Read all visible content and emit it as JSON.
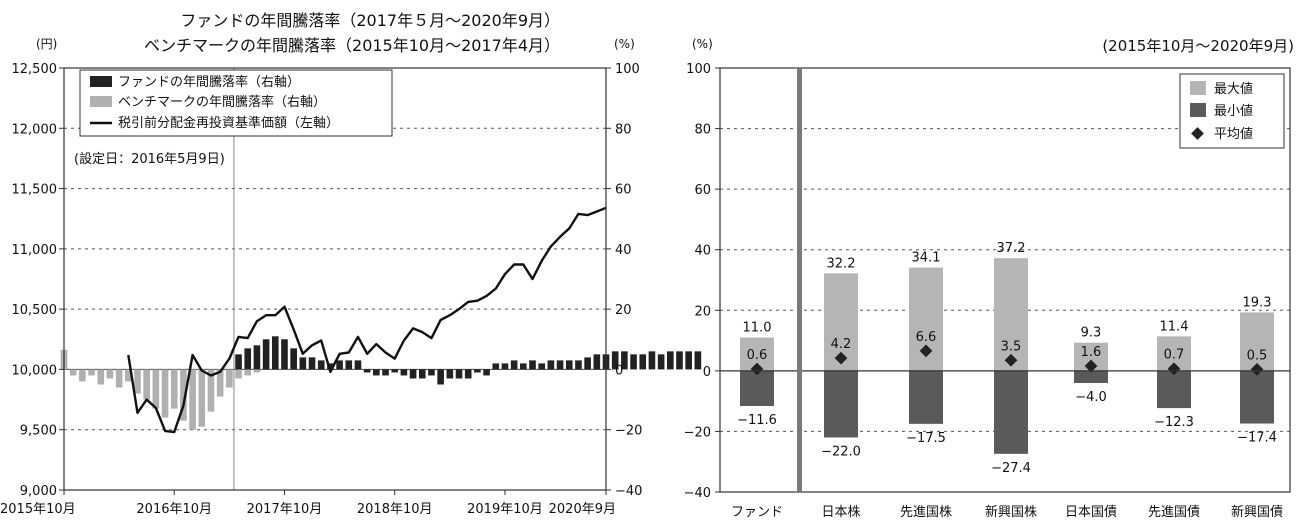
{
  "chart_data": [
    {
      "type": "line",
      "title": "ファンドの年間騰落率（2017年５月〜2020年9月）",
      "subtitle": "ベンチマークの年間騰落率（2015年10月〜2017年4月）",
      "ylabel_left": "(円)",
      "ylabel_right": "(%)",
      "yleft_range": [
        9000,
        12500
      ],
      "yright_range": [
        -40,
        100
      ],
      "yleft_ticks": [
        "9,000",
        "9,500",
        "10,000",
        "10,500",
        "11,000",
        "11,500",
        "12,000",
        "12,500"
      ],
      "yright_ticks": [
        "−40",
        "−20",
        "0",
        "20",
        "40",
        "60",
        "80",
        "100"
      ],
      "xticks": [
        "2015年10月",
        "2016年10月",
        "2017年10月",
        "2018年10月",
        "2019年10月",
        "2020年9月"
      ],
      "x_start": "2015-10",
      "legend": [
        {
          "name": "ファンドの年間騰落率（右軸）",
          "color": "#222222"
        },
        {
          "name": "ベンチマークの年間騰落率（右軸）",
          "color": "#b0b0b0"
        },
        {
          "name": "税引前分配金再投資基準価額（左軸）",
          "color": "#111111"
        }
      ],
      "note": "(設定日：2016年5月9日)",
      "benchmark_annual_return": {
        "start": "2015-10",
        "values": [
          6.5,
          -2,
          -4,
          -2,
          -5,
          -3,
          -6,
          -4,
          -8,
          -10,
          -13,
          -16,
          -13,
          -17,
          -20,
          -19,
          -14,
          -9,
          -6,
          -3,
          -2,
          -1
        ]
      },
      "fund_annual_return": {
        "start": "2017-05",
        "values": [
          5,
          7,
          8,
          10,
          11,
          10,
          7,
          4,
          4,
          3,
          2,
          3,
          3,
          3,
          -1,
          -2,
          -2,
          -1,
          -2,
          -3,
          -3,
          -2,
          -5,
          -3,
          -3,
          -3,
          -1,
          -2,
          2,
          2,
          3,
          2,
          3,
          2,
          3,
          3,
          3,
          3,
          4,
          5,
          5,
          6,
          6,
          5,
          5,
          6,
          5,
          6,
          6,
          6,
          6
        ]
      },
      "nav": {
        "start": "2016-05",
        "values": [
          10120,
          9640,
          9750,
          9680,
          9490,
          9480,
          9700,
          10120,
          9990,
          9950,
          9980,
          10090,
          10270,
          10260,
          10400,
          10450,
          10450,
          10520,
          10330,
          10130,
          10200,
          10240,
          9980,
          10130,
          10140,
          10270,
          10130,
          10210,
          10140,
          10090,
          10240,
          10340,
          10310,
          10260,
          10410,
          10450,
          10500,
          10560,
          10570,
          10610,
          10670,
          10790,
          10870,
          10870,
          10750,
          10900,
          11020,
          11100,
          11170,
          11290,
          11280,
          11310,
          11340
        ]
      }
    },
    {
      "type": "bar",
      "subtitle": "(2015年10月〜2020年9月)",
      "ylabel": "(%)",
      "ylim": [
        -40,
        100
      ],
      "yticks": [
        "−40",
        "−20",
        "0",
        "20",
        "40",
        "60",
        "80",
        "100"
      ],
      "categories": [
        "ファンド",
        "日本株",
        "先進国株",
        "新興国株",
        "日本国債",
        "先進国債",
        "新興国債"
      ],
      "legend": [
        {
          "name": "最大値",
          "color": "#b5b5b5"
        },
        {
          "name": "最小値",
          "color": "#5a5a5a"
        },
        {
          "name": "平均値",
          "color": "#222222"
        }
      ],
      "series": [
        {
          "name": "最大値",
          "values": [
            11.0,
            32.2,
            34.1,
            37.2,
            9.3,
            11.4,
            19.3
          ]
        },
        {
          "name": "最小値",
          "values": [
            -11.6,
            -22.0,
            -17.5,
            -27.4,
            -4.0,
            -12.3,
            -17.4
          ]
        },
        {
          "name": "平均値",
          "values": [
            0.6,
            4.2,
            6.6,
            3.5,
            1.6,
            0.7,
            0.5
          ]
        }
      ],
      "max_labels": [
        "11.0",
        "32.2",
        "34.1",
        "37.2",
        "9.3",
        "11.4",
        "19.3"
      ],
      "min_labels": [
        "−11.6",
        "−22.0",
        "−17.5",
        "−27.4",
        "−4.0",
        "−12.3",
        "−17.4"
      ],
      "avg_labels": [
        "0.6",
        "4.2",
        "6.6",
        "3.5",
        "1.6",
        "0.7",
        "0.5"
      ]
    }
  ]
}
